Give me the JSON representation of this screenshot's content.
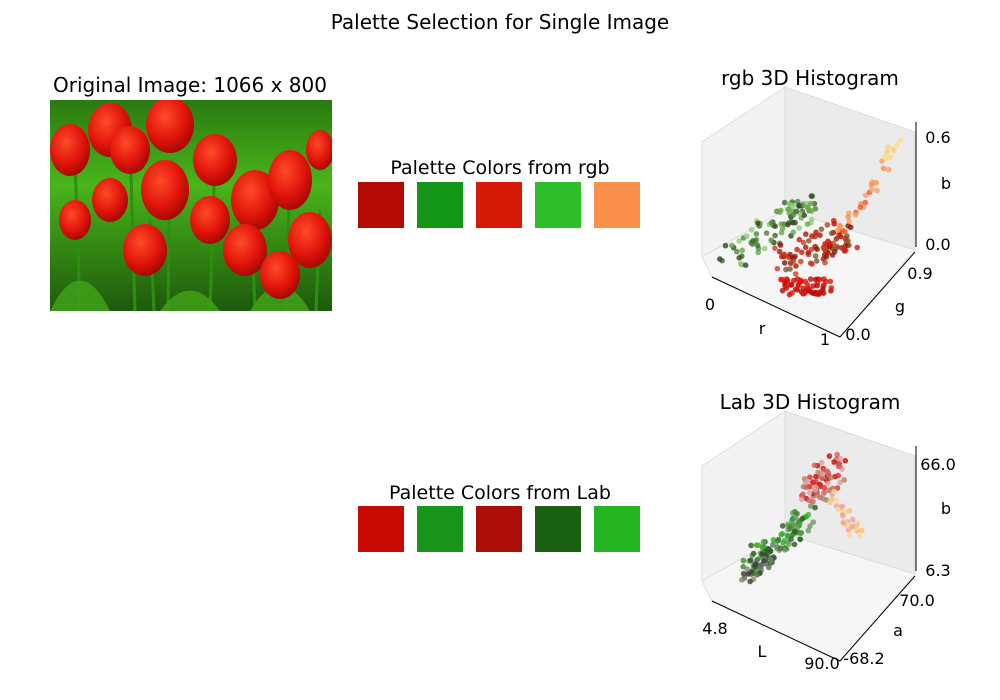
{
  "figure": {
    "title": "Palette Selection for Single Image"
  },
  "original_image": {
    "title": "Original Image: 1066 x 800",
    "description_icon": "tulip-photo"
  },
  "palettes": [
    {
      "title": "Palette Colors from rgb",
      "colors": [
        "#b30a04",
        "#139615",
        "#d61a08",
        "#2dbc2a",
        "#fb904c"
      ]
    },
    {
      "title": "Palette Colors from Lab",
      "colors": [
        "#c80a04",
        "#1a951b",
        "#ad0d07",
        "#1b6112",
        "#24b421"
      ]
    }
  ],
  "chart_data": [
    {
      "type": "scatter",
      "title": "rgb 3D Histogram",
      "xlabel": "r",
      "ylabel": "g",
      "zlabel": "b",
      "x_ticks": [
        "0",
        "1"
      ],
      "y_ticks": [
        "0.0",
        "0.9"
      ],
      "z_ticks": [
        "0.0",
        "0.6"
      ],
      "xlim": [
        0,
        1
      ],
      "ylim": [
        0,
        0.9
      ],
      "zlim": [
        0,
        0.6
      ],
      "grid": true
    },
    {
      "type": "scatter",
      "title": "Lab 3D Histogram",
      "xlabel": "L",
      "ylabel": "a",
      "zlabel": "b",
      "x_ticks": [
        "4.8",
        "90.0"
      ],
      "y_ticks": [
        "-68.2",
        "70.0"
      ],
      "z_ticks": [
        "6.3",
        "66.0"
      ],
      "xlim": [
        4.8,
        90.0
      ],
      "ylim": [
        -68.2,
        70.0
      ],
      "zlim": [
        6.3,
        66.0
      ],
      "grid": true
    }
  ]
}
